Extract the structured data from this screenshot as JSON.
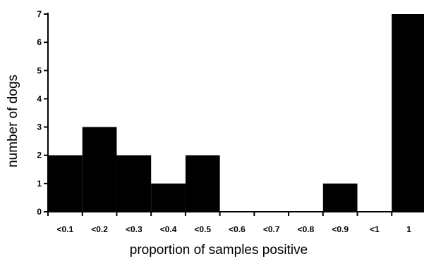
{
  "chart_data": {
    "type": "bar",
    "title": "",
    "xlabel": "proportion of samples positive",
    "ylabel": "number of dogs",
    "categories": [
      "<0.1",
      "<0.2",
      "<0.3",
      "<0.4",
      "<0.5",
      "<0.6",
      "<0.7",
      "<0.8",
      "<0.9",
      "<1",
      "1"
    ],
    "values": [
      2,
      3,
      2,
      1,
      2,
      0,
      0,
      0,
      1,
      0,
      7
    ],
    "ylim": [
      0,
      7
    ],
    "yticks": [
      "0",
      "1",
      "2",
      "3",
      "4",
      "5",
      "6",
      "7"
    ],
    "grid": false,
    "bar_color": "#000000"
  }
}
